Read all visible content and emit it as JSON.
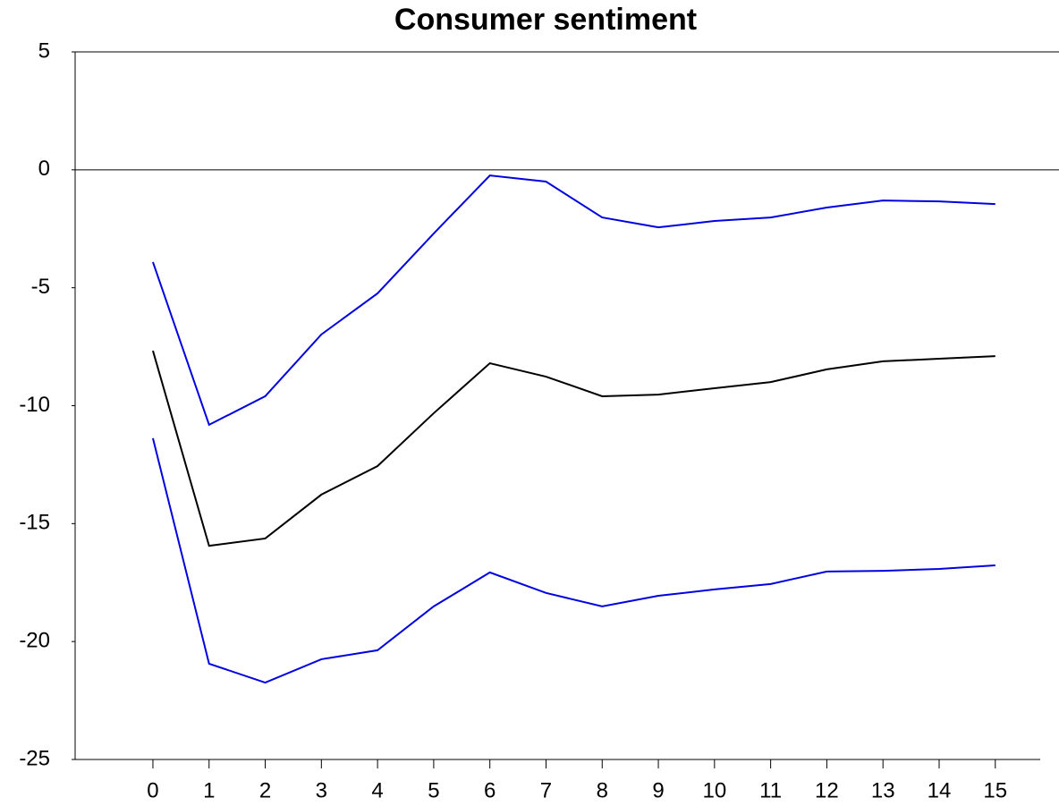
{
  "chart_data": {
    "type": "line",
    "title": "Consumer sentiment",
    "x": [
      0,
      1,
      2,
      3,
      4,
      5,
      6,
      7,
      8,
      9,
      10,
      11,
      12,
      13,
      14,
      15
    ],
    "series": [
      {
        "color": "#0000e0",
        "values": [
          -3.91,
          -10.81,
          -9.6,
          -6.98,
          -5.24,
          -2.7,
          -0.24,
          -0.5,
          -2.02,
          -2.44,
          -2.17,
          -2.02,
          -1.6,
          -1.3,
          -1.34,
          -1.45
        ]
      },
      {
        "color": "#000000",
        "values": [
          -7.67,
          -15.94,
          -15.63,
          -13.77,
          -12.56,
          -10.32,
          -8.2,
          -8.77,
          -9.6,
          -9.53,
          -9.26,
          -9.0,
          -8.46,
          -8.12,
          -8.01,
          -7.9
        ]
      },
      {
        "color": "#0000e0",
        "values": [
          -11.38,
          -20.94,
          -21.74,
          -20.75,
          -20.37,
          -18.51,
          -17.07,
          -17.94,
          -18.51,
          -18.06,
          -17.79,
          -17.56,
          -17.03,
          -17.0,
          -16.92,
          -16.77
        ]
      }
    ],
    "xlim": [
      -1.385,
      15.8
    ],
    "xticks": [
      0,
      1,
      2,
      3,
      4,
      5,
      6,
      7,
      8,
      9,
      10,
      11,
      12,
      13,
      14,
      15
    ],
    "ylim": [
      -25,
      5
    ],
    "yticks": [
      5,
      0,
      -5,
      -10,
      -15,
      -20,
      -25
    ],
    "hline": 0
  }
}
